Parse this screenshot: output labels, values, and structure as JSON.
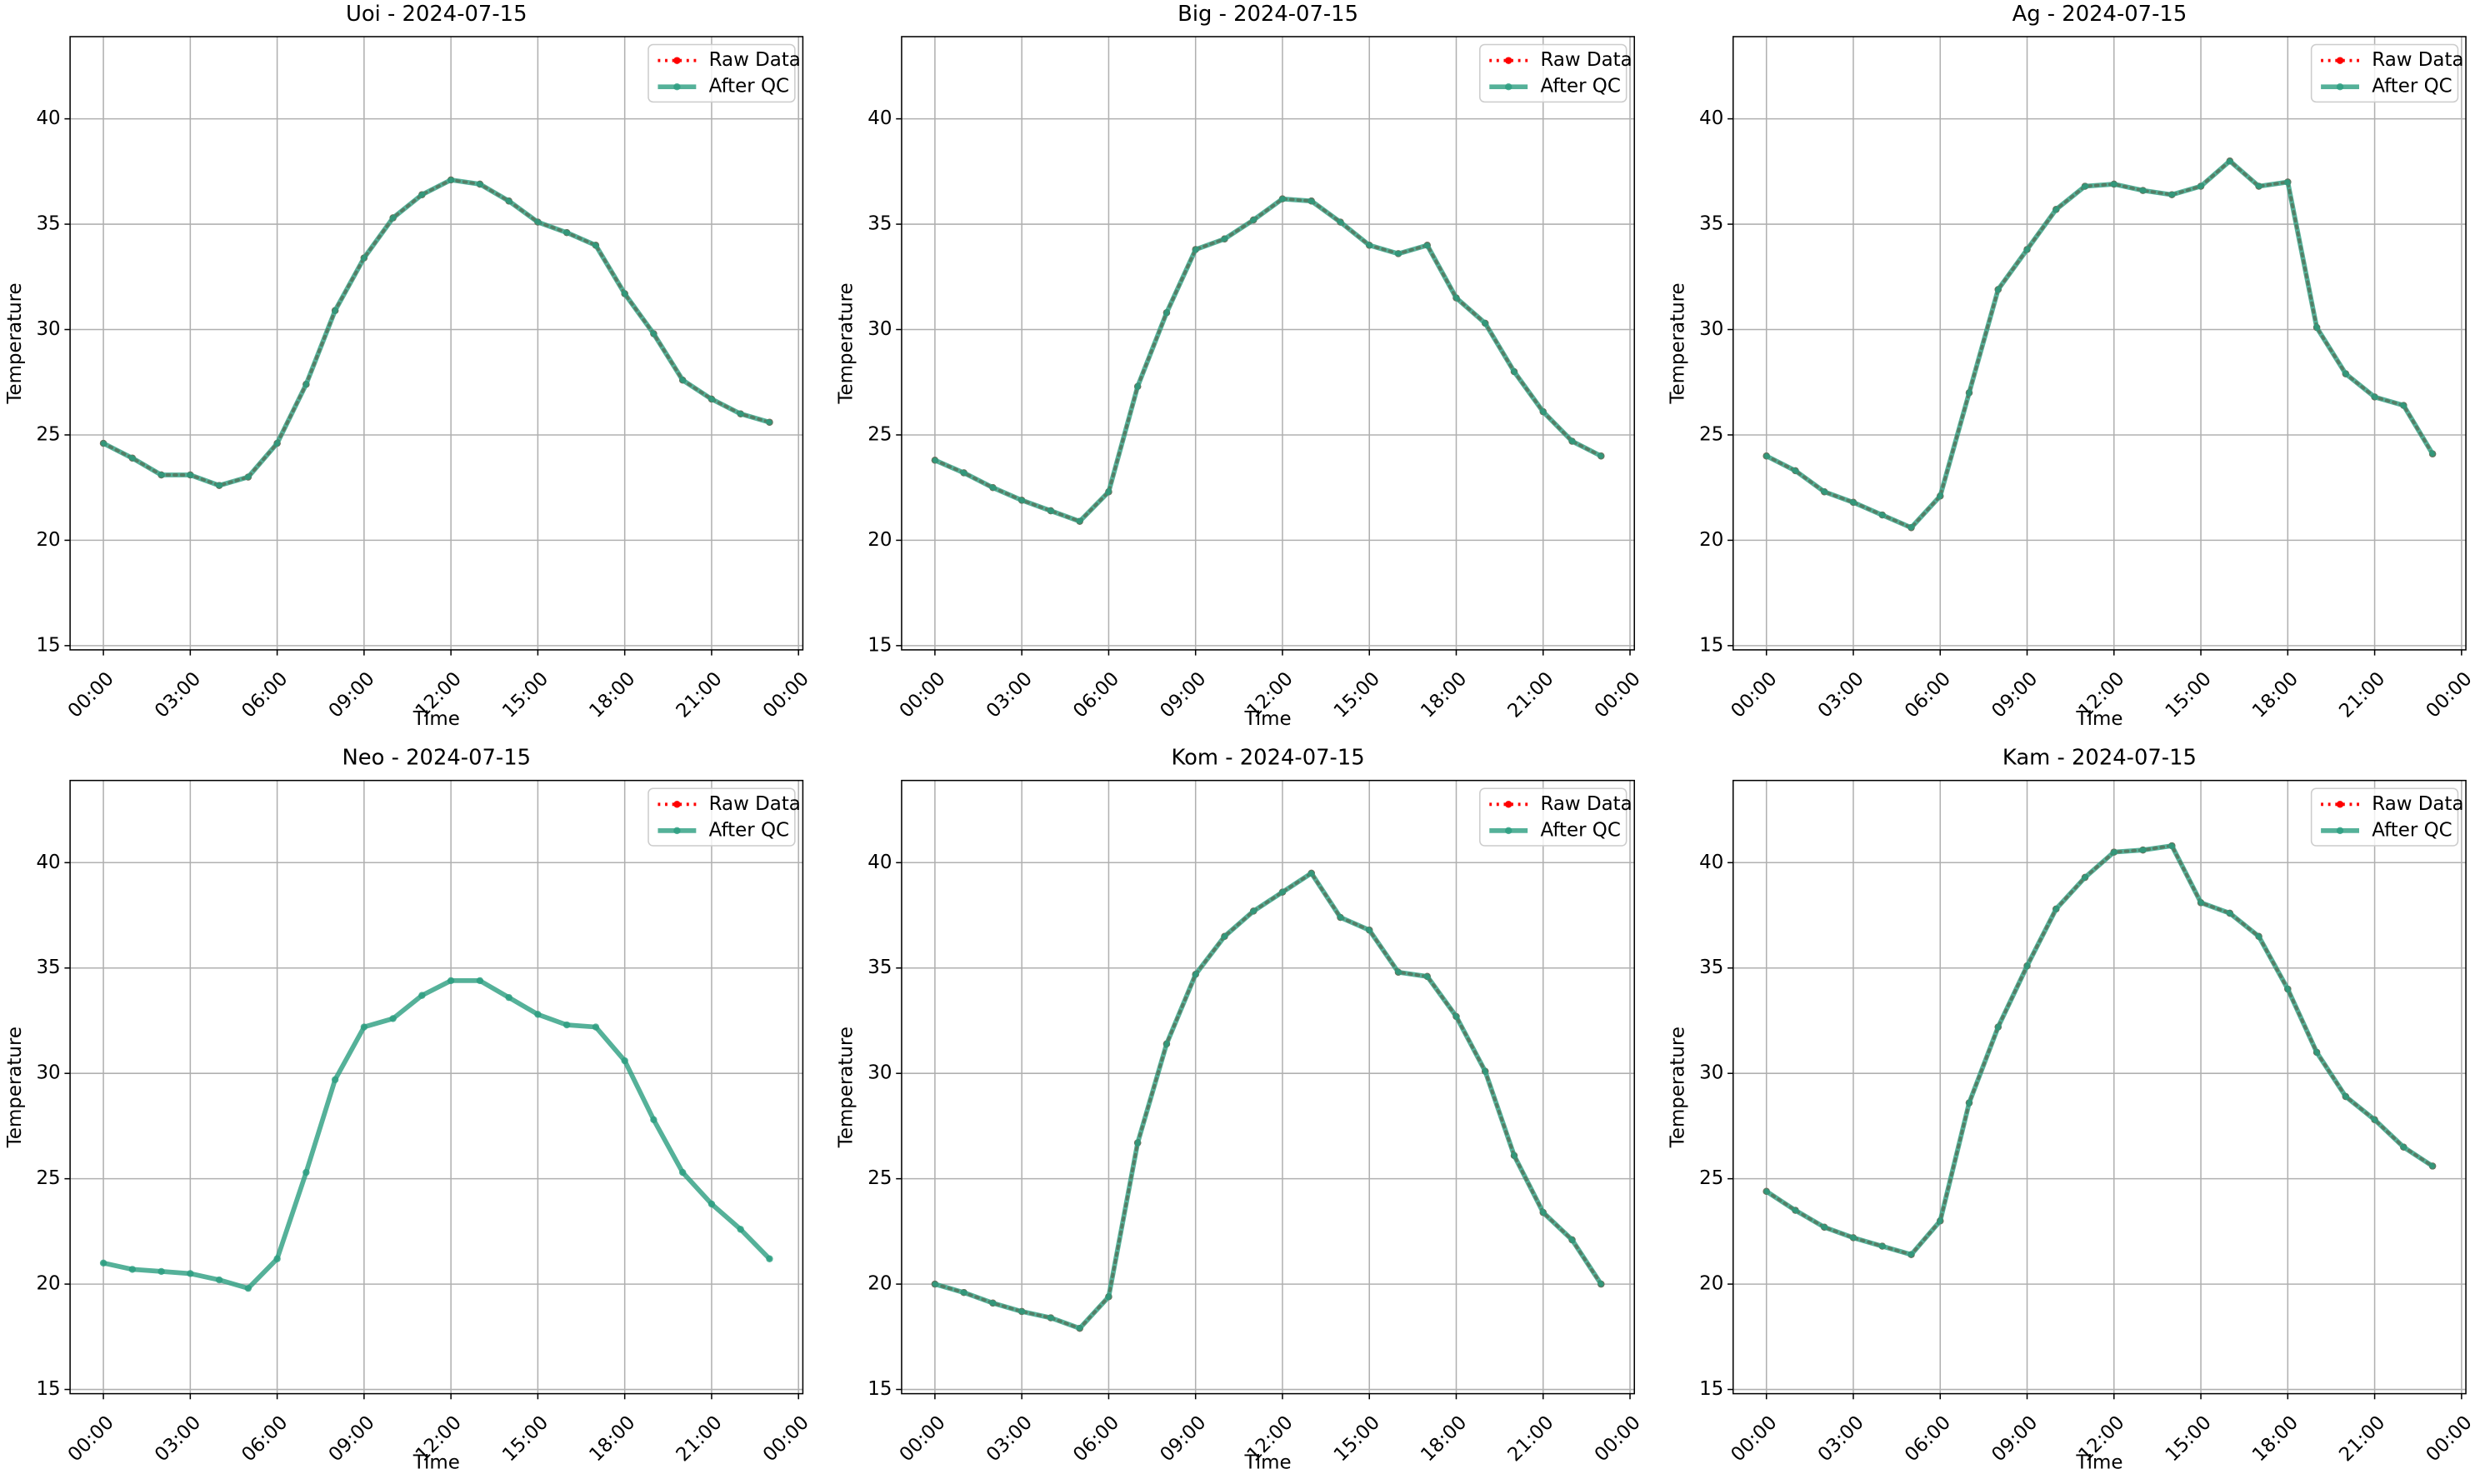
{
  "chart_data": [
    {
      "type": "line",
      "title": "Uoi - 2024-07-15",
      "xlabel": "Time",
      "ylabel": "Temperature",
      "grid": true,
      "legend": "upper right",
      "x": [
        0,
        1,
        2,
        3,
        4,
        5,
        6,
        7,
        8,
        9,
        10,
        11,
        12,
        13,
        14,
        15,
        16,
        17,
        18,
        19,
        20,
        21,
        22,
        23
      ],
      "xlim": [
        -1.15,
        24.15
      ],
      "xticks": [
        {
          "value": 0,
          "label": "00:00"
        },
        {
          "value": 3,
          "label": "03:00"
        },
        {
          "value": 6,
          "label": "06:00"
        },
        {
          "value": 9,
          "label": "09:00"
        },
        {
          "value": 12,
          "label": "12:00"
        },
        {
          "value": 15,
          "label": "15:00"
        },
        {
          "value": 18,
          "label": "18:00"
        },
        {
          "value": 21,
          "label": "21:00"
        },
        {
          "value": 24,
          "label": "00:00"
        }
      ],
      "ylim": [
        14.8,
        43.9
      ],
      "yticks": [
        15,
        20,
        25,
        30,
        35,
        40
      ],
      "series": [
        {
          "name": "Raw Data",
          "color": "#ff0000",
          "values": [
            24.6,
            23.9,
            23.1,
            23.1,
            22.6,
            23.0,
            24.6,
            27.4,
            30.9,
            33.4,
            35.3,
            36.4,
            37.1,
            36.9,
            36.1,
            35.1,
            34.6,
            34.0,
            31.7,
            29.8,
            27.6,
            26.7,
            26.0,
            25.6
          ]
        },
        {
          "name": "After QC",
          "color": "#2a9d80",
          "values": [
            24.6,
            23.9,
            23.1,
            23.1,
            22.6,
            23.0,
            24.6,
            27.4,
            30.9,
            33.4,
            35.3,
            36.4,
            37.1,
            36.9,
            36.1,
            35.1,
            34.6,
            34.0,
            31.7,
            29.8,
            27.6,
            26.7,
            26.0,
            25.6
          ]
        }
      ]
    },
    {
      "type": "line",
      "title": "Big - 2024-07-15",
      "xlabel": "Time",
      "ylabel": "Temperature",
      "grid": true,
      "legend": "upper right",
      "x": [
        0,
        1,
        2,
        3,
        4,
        5,
        6,
        7,
        8,
        9,
        10,
        11,
        12,
        13,
        14,
        15,
        16,
        17,
        18,
        19,
        20,
        21,
        22,
        23
      ],
      "xlim": [
        -1.15,
        24.15
      ],
      "xticks": [
        {
          "value": 0,
          "label": "00:00"
        },
        {
          "value": 3,
          "label": "03:00"
        },
        {
          "value": 6,
          "label": "06:00"
        },
        {
          "value": 9,
          "label": "09:00"
        },
        {
          "value": 12,
          "label": "12:00"
        },
        {
          "value": 15,
          "label": "15:00"
        },
        {
          "value": 18,
          "label": "18:00"
        },
        {
          "value": 21,
          "label": "21:00"
        },
        {
          "value": 24,
          "label": "00:00"
        }
      ],
      "ylim": [
        14.8,
        43.9
      ],
      "yticks": [
        15,
        20,
        25,
        30,
        35,
        40
      ],
      "series": [
        {
          "name": "Raw Data",
          "color": "#ff0000",
          "values": [
            23.8,
            23.2,
            22.5,
            21.9,
            21.4,
            20.9,
            22.3,
            27.3,
            30.8,
            33.8,
            34.3,
            35.2,
            36.2,
            36.1,
            35.1,
            34.0,
            33.6,
            34.0,
            31.5,
            30.3,
            28.0,
            26.1,
            24.7,
            24.0
          ]
        },
        {
          "name": "After QC",
          "color": "#2a9d80",
          "values": [
            23.8,
            23.2,
            22.5,
            21.9,
            21.4,
            20.9,
            22.3,
            27.3,
            30.8,
            33.8,
            34.3,
            35.2,
            36.2,
            36.1,
            35.1,
            34.0,
            33.6,
            34.0,
            31.5,
            30.3,
            28.0,
            26.1,
            24.7,
            24.0
          ]
        }
      ]
    },
    {
      "type": "line",
      "title": "Ag - 2024-07-15",
      "xlabel": "Time",
      "ylabel": "Temperature",
      "grid": true,
      "legend": "upper right",
      "x": [
        0,
        1,
        2,
        3,
        4,
        5,
        6,
        7,
        8,
        9,
        10,
        11,
        12,
        13,
        14,
        15,
        16,
        17,
        18,
        19,
        20,
        21,
        22,
        23
      ],
      "xlim": [
        -1.15,
        24.15
      ],
      "xticks": [
        {
          "value": 0,
          "label": "00:00"
        },
        {
          "value": 3,
          "label": "03:00"
        },
        {
          "value": 6,
          "label": "06:00"
        },
        {
          "value": 9,
          "label": "09:00"
        },
        {
          "value": 12,
          "label": "12:00"
        },
        {
          "value": 15,
          "label": "15:00"
        },
        {
          "value": 18,
          "label": "18:00"
        },
        {
          "value": 21,
          "label": "21:00"
        },
        {
          "value": 24,
          "label": "00:00"
        }
      ],
      "ylim": [
        14.8,
        43.9
      ],
      "yticks": [
        15,
        20,
        25,
        30,
        35,
        40
      ],
      "series": [
        {
          "name": "Raw Data",
          "color": "#ff0000",
          "values": [
            24.0,
            23.3,
            22.3,
            21.8,
            21.2,
            20.6,
            22.1,
            27.0,
            31.9,
            33.8,
            35.7,
            36.8,
            36.9,
            36.6,
            36.4,
            36.8,
            38.0,
            36.8,
            37.0,
            30.1,
            27.9,
            26.8,
            26.4,
            24.1
          ]
        },
        {
          "name": "After QC",
          "color": "#2a9d80",
          "values": [
            24.0,
            23.3,
            22.3,
            21.8,
            21.2,
            20.6,
            22.1,
            27.0,
            31.9,
            33.8,
            35.7,
            36.8,
            36.9,
            36.6,
            36.4,
            36.8,
            38.0,
            36.8,
            37.0,
            30.1,
            27.9,
            26.8,
            26.4,
            24.1
          ]
        }
      ]
    },
    {
      "type": "line",
      "title": "Neo - 2024-07-15",
      "xlabel": "Time",
      "ylabel": "Temperature",
      "grid": true,
      "legend": "upper right",
      "x": [
        0,
        1,
        2,
        3,
        4,
        5,
        6,
        7,
        8,
        9,
        10,
        11,
        12,
        13,
        14,
        15,
        16,
        17,
        18,
        19,
        20,
        21,
        22,
        23
      ],
      "xlim": [
        -1.15,
        24.15
      ],
      "xticks": [
        {
          "value": 0,
          "label": "00:00"
        },
        {
          "value": 3,
          "label": "03:00"
        },
        {
          "value": 6,
          "label": "06:00"
        },
        {
          "value": 9,
          "label": "09:00"
        },
        {
          "value": 12,
          "label": "12:00"
        },
        {
          "value": 15,
          "label": "15:00"
        },
        {
          "value": 18,
          "label": "18:00"
        },
        {
          "value": 21,
          "label": "21:00"
        },
        {
          "value": 24,
          "label": "00:00"
        }
      ],
      "ylim": [
        14.8,
        43.9
      ],
      "yticks": [
        15,
        20,
        25,
        30,
        35,
        40
      ],
      "series": [
        {
          "name": "Raw Data",
          "color": "#ff0000",
          "values": [
            null,
            null,
            null,
            null,
            null,
            null,
            null,
            null,
            null,
            null,
            null,
            null,
            null,
            null,
            null,
            null,
            null,
            null,
            null,
            null,
            null,
            null,
            null,
            null
          ]
        },
        {
          "name": "After QC",
          "color": "#2a9d80",
          "values": [
            21.0,
            20.7,
            20.6,
            20.5,
            20.2,
            19.8,
            21.2,
            25.3,
            29.7,
            32.2,
            32.6,
            33.7,
            34.4,
            34.4,
            33.6,
            32.8,
            32.3,
            32.2,
            30.6,
            27.8,
            25.3,
            23.8,
            22.6,
            21.2
          ]
        }
      ]
    },
    {
      "type": "line",
      "title": "Kom - 2024-07-15",
      "xlabel": "Time",
      "ylabel": "Temperature",
      "grid": true,
      "legend": "upper right",
      "x": [
        0,
        1,
        2,
        3,
        4,
        5,
        6,
        7,
        8,
        9,
        10,
        11,
        12,
        13,
        14,
        15,
        16,
        17,
        18,
        19,
        20,
        21,
        22,
        23
      ],
      "xlim": [
        -1.15,
        24.15
      ],
      "xticks": [
        {
          "value": 0,
          "label": "00:00"
        },
        {
          "value": 3,
          "label": "03:00"
        },
        {
          "value": 6,
          "label": "06:00"
        },
        {
          "value": 9,
          "label": "09:00"
        },
        {
          "value": 12,
          "label": "12:00"
        },
        {
          "value": 15,
          "label": "15:00"
        },
        {
          "value": 18,
          "label": "18:00"
        },
        {
          "value": 21,
          "label": "21:00"
        },
        {
          "value": 24,
          "label": "00:00"
        }
      ],
      "ylim": [
        14.8,
        43.9
      ],
      "yticks": [
        15,
        20,
        25,
        30,
        35,
        40
      ],
      "series": [
        {
          "name": "Raw Data",
          "color": "#ff0000",
          "values": [
            20.0,
            19.6,
            19.1,
            18.7,
            18.4,
            17.9,
            19.4,
            26.7,
            31.4,
            34.7,
            36.5,
            37.7,
            38.6,
            39.5,
            37.4,
            36.8,
            34.8,
            34.6,
            32.7,
            30.1,
            26.1,
            23.4,
            22.1,
            20.0
          ]
        },
        {
          "name": "After QC",
          "color": "#2a9d80",
          "values": [
            20.0,
            19.6,
            19.1,
            18.7,
            18.4,
            17.9,
            19.4,
            26.7,
            31.4,
            34.7,
            36.5,
            37.7,
            38.6,
            39.5,
            37.4,
            36.8,
            34.8,
            34.6,
            32.7,
            30.1,
            26.1,
            23.4,
            22.1,
            20.0
          ]
        }
      ]
    },
    {
      "type": "line",
      "title": "Kam - 2024-07-15",
      "xlabel": "Time",
      "ylabel": "Temperature",
      "grid": true,
      "legend": "upper right",
      "x": [
        0,
        1,
        2,
        3,
        4,
        5,
        6,
        7,
        8,
        9,
        10,
        11,
        12,
        13,
        14,
        15,
        16,
        17,
        18,
        19,
        20,
        21,
        22,
        23
      ],
      "xlim": [
        -1.15,
        24.15
      ],
      "xticks": [
        {
          "value": 0,
          "label": "00:00"
        },
        {
          "value": 3,
          "label": "03:00"
        },
        {
          "value": 6,
          "label": "06:00"
        },
        {
          "value": 9,
          "label": "09:00"
        },
        {
          "value": 12,
          "label": "12:00"
        },
        {
          "value": 15,
          "label": "15:00"
        },
        {
          "value": 18,
          "label": "18:00"
        },
        {
          "value": 21,
          "label": "21:00"
        },
        {
          "value": 24,
          "label": "00:00"
        }
      ],
      "ylim": [
        14.8,
        43.9
      ],
      "yticks": [
        15,
        20,
        25,
        30,
        35,
        40
      ],
      "series": [
        {
          "name": "Raw Data",
          "color": "#ff0000",
          "values": [
            24.4,
            23.5,
            22.7,
            22.2,
            21.8,
            21.4,
            23.0,
            28.6,
            32.2,
            35.1,
            37.8,
            39.3,
            40.5,
            40.6,
            40.8,
            38.1,
            37.6,
            36.5,
            34.0,
            31.0,
            28.9,
            27.8,
            26.5,
            25.6
          ]
        },
        {
          "name": "After QC",
          "color": "#2a9d80",
          "values": [
            24.4,
            23.5,
            22.7,
            22.2,
            21.8,
            21.4,
            23.0,
            28.6,
            32.2,
            35.1,
            37.8,
            39.3,
            40.5,
            40.6,
            40.8,
            38.1,
            37.6,
            36.5,
            34.0,
            31.0,
            28.9,
            27.8,
            26.5,
            25.6
          ]
        }
      ]
    }
  ]
}
